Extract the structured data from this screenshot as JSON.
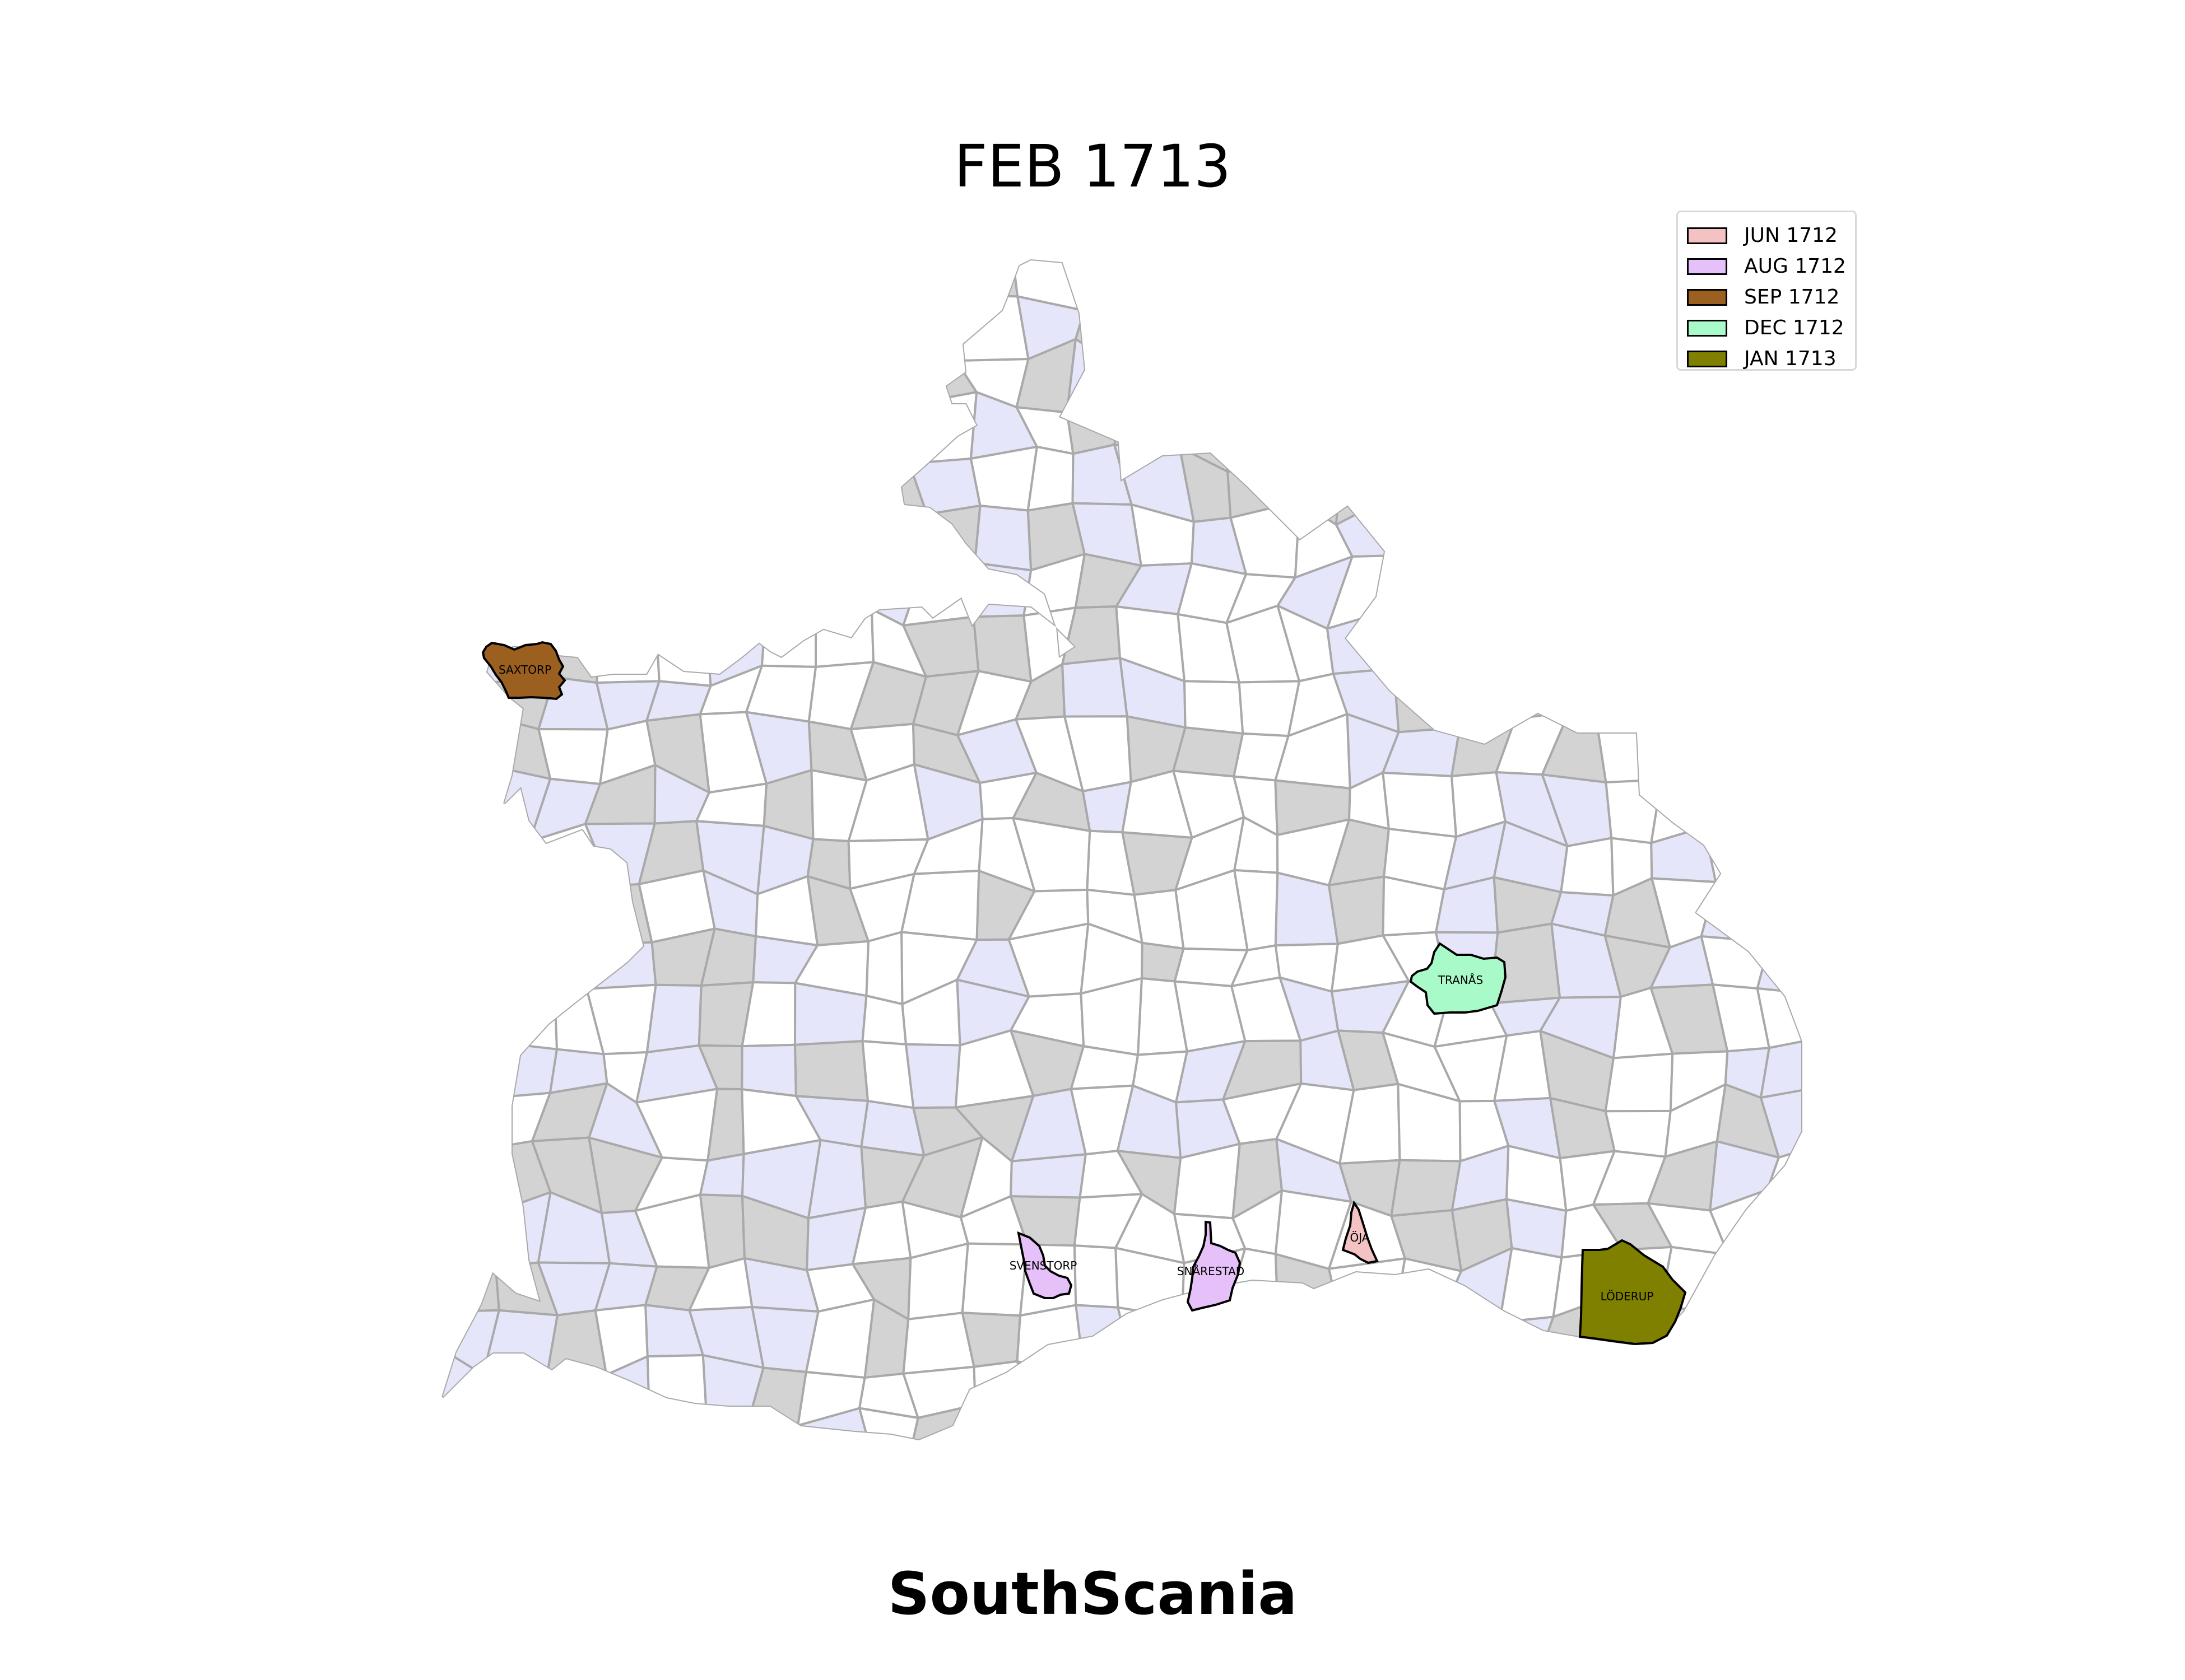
{
  "title": "FEB 1713",
  "region": "SouthScania",
  "colors": {
    "background": "#ffffff",
    "unaffected_fill": "#ffffff",
    "lavender_fill": "#e6e6fa",
    "gray_fill": "#d3d3d3",
    "border": "#a9a9a9",
    "highlight_border": "#000000"
  },
  "legend": {
    "placement": "top-right",
    "items": [
      {
        "label": "JUN 1712",
        "color": "#f4c2c2"
      },
      {
        "label": "AUG 1712",
        "color": "#e6c0f8"
      },
      {
        "label": "SEP 1712",
        "color": "#9b5f1f"
      },
      {
        "label": "DEC 1712",
        "color": "#a8fbc8"
      },
      {
        "label": "JAN 1713",
        "color": "#7f7f00"
      }
    ]
  },
  "parishes": [
    {
      "name": "SAXTORP",
      "date": "SEP 1712",
      "color": "#9b5f1f"
    },
    {
      "name": "TRANÅS",
      "date": "DEC 1712",
      "color": "#a8fbc8"
    },
    {
      "name": "SVENSTORP",
      "date": "AUG 1712",
      "color": "#e6c0f8"
    },
    {
      "name": "SNÅRESTAD",
      "date": "AUG 1712",
      "color": "#e6c0f8"
    },
    {
      "name": "ÖJA",
      "date": "JUN 1712",
      "color": "#f4c2c2"
    },
    {
      "name": "LÖDERUP",
      "date": "JAN 1713",
      "color": "#7f7f00"
    }
  ]
}
